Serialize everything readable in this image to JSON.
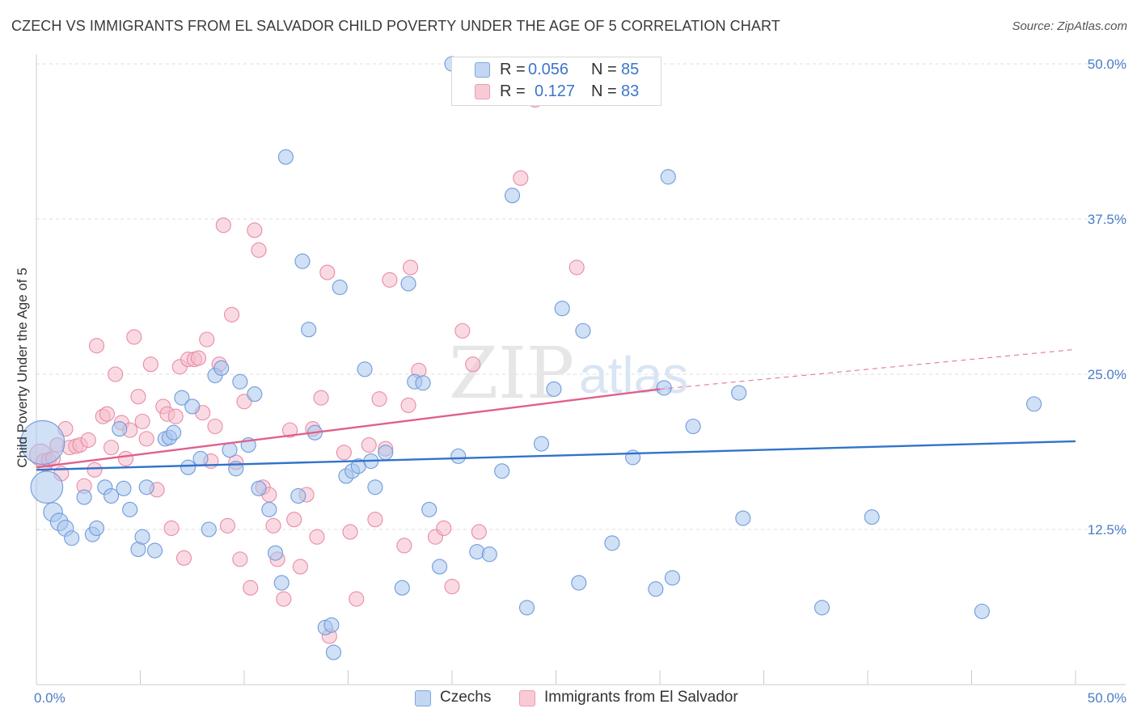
{
  "title": "CZECH VS IMMIGRANTS FROM EL SALVADOR CHILD POVERTY UNDER THE AGE OF 5 CORRELATION CHART",
  "source": "Source: ZipAtlas.com",
  "watermark": "ZIPatlas",
  "legend": {
    "rows": [
      {
        "r_label": "R =",
        "r_value": "0.056",
        "n_label": "N =",
        "n_value": "85"
      },
      {
        "r_label": "R =",
        "r_value": "0.127",
        "n_label": "N =",
        "n_value": "83"
      }
    ]
  },
  "bottom_legend": [
    "Czechs",
    "Immigrants from El Salvador"
  ],
  "colors": {
    "blue_fill": "#a9c6ec",
    "blue_stroke": "#6f9bdc",
    "blue_line": "#3173c9",
    "pink_fill": "#f5bccb",
    "pink_stroke": "#e98ba5",
    "pink_line": "#e0608a",
    "grid": "#dddddd",
    "tick_text": "#4a7cc7"
  },
  "chart_data": {
    "type": "scatter",
    "title": "CZECH VS IMMIGRANTS FROM EL SALVADOR CHILD POVERTY UNDER THE AGE OF 5 CORRELATION CHART",
    "xlabel": "",
    "ylabel": "Child Poverty Under the Age of 5",
    "xlim": [
      0,
      50
    ],
    "ylim": [
      0,
      50
    ],
    "x_tick_labels": [
      "0.0%",
      "50.0%"
    ],
    "y_tick_values": [
      12.5,
      25.0,
      37.5,
      50.0
    ],
    "y_tick_labels": [
      "12.5%",
      "25.0%",
      "37.5%",
      "50.0%"
    ],
    "grid": true,
    "legend_position": "top-center",
    "series": [
      {
        "name": "Czechs",
        "r": 0.056,
        "n": 85,
        "trend": {
          "x": [
            0,
            50
          ],
          "y": [
            17.3,
            19.6
          ]
        },
        "points": [
          [
            0.3,
            19.5,
            3
          ],
          [
            0.5,
            15.9,
            2.2
          ],
          [
            0.8,
            13.9,
            1.3
          ],
          [
            1.1,
            13.1,
            1.2
          ],
          [
            1.4,
            12.6,
            1.1
          ],
          [
            1.7,
            11.8,
            1.0
          ],
          [
            2.3,
            15.1,
            1.0
          ],
          [
            2.7,
            12.1,
            1.0
          ],
          [
            2.9,
            12.6,
            1.0
          ],
          [
            3.3,
            15.9,
            1.0
          ],
          [
            3.6,
            15.2,
            1.0
          ],
          [
            4.0,
            20.6,
            1.0
          ],
          [
            4.2,
            15.8,
            1.0
          ],
          [
            4.5,
            14.1,
            1.0
          ],
          [
            4.9,
            10.9,
            1.0
          ],
          [
            5.1,
            11.9,
            1.0
          ],
          [
            5.3,
            15.9,
            1.0
          ],
          [
            5.7,
            10.8,
            1.0
          ],
          [
            6.2,
            19.8,
            1.0
          ],
          [
            6.4,
            19.9,
            1.0
          ],
          [
            6.6,
            20.3,
            1.0
          ],
          [
            7.0,
            23.1,
            1.0
          ],
          [
            7.3,
            17.5,
            1.0
          ],
          [
            7.5,
            22.4,
            1.0
          ],
          [
            7.9,
            18.2,
            1.0
          ],
          [
            8.3,
            12.5,
            1.0
          ],
          [
            8.6,
            24.9,
            1.0
          ],
          [
            8.9,
            25.5,
            1.0
          ],
          [
            9.3,
            18.9,
            1.0
          ],
          [
            9.6,
            17.4,
            1.0
          ],
          [
            9.8,
            24.4,
            1.0
          ],
          [
            10.2,
            19.3,
            1.0
          ],
          [
            10.5,
            23.4,
            1.0
          ],
          [
            10.7,
            15.8,
            1.0
          ],
          [
            11.2,
            14.1,
            1.0
          ],
          [
            11.5,
            10.6,
            1.0
          ],
          [
            11.8,
            8.2,
            1.0
          ],
          [
            12.0,
            42.5,
            1.0
          ],
          [
            12.6,
            15.2,
            1.0
          ],
          [
            12.8,
            34.1,
            1.0
          ],
          [
            13.1,
            28.6,
            1.0
          ],
          [
            13.4,
            20.3,
            1.0
          ],
          [
            13.9,
            4.6,
            1.0
          ],
          [
            14.2,
            4.8,
            1.0
          ],
          [
            14.3,
            2.6,
            1.0
          ],
          [
            14.6,
            32.0,
            1.0
          ],
          [
            14.9,
            16.8,
            1.0
          ],
          [
            15.2,
            17.2,
            1.0
          ],
          [
            15.5,
            17.6,
            1.0
          ],
          [
            15.8,
            25.4,
            1.0
          ],
          [
            16.1,
            18.0,
            1.0
          ],
          [
            16.3,
            15.9,
            1.0
          ],
          [
            16.8,
            18.7,
            1.0
          ],
          [
            17.6,
            7.8,
            1.0
          ],
          [
            17.9,
            32.3,
            1.0
          ],
          [
            18.2,
            24.4,
            1.0
          ],
          [
            18.6,
            24.3,
            1.0
          ],
          [
            18.9,
            14.1,
            1.0
          ],
          [
            19.4,
            9.5,
            1.0
          ],
          [
            20.0,
            50.0,
            1.0
          ],
          [
            20.3,
            18.4,
            1.0
          ],
          [
            21.2,
            10.7,
            1.0
          ],
          [
            21.8,
            10.5,
            1.0
          ],
          [
            22.4,
            17.2,
            1.0
          ],
          [
            22.9,
            39.4,
            1.0
          ],
          [
            23.6,
            6.2,
            1.0
          ],
          [
            24.3,
            19.4,
            1.0
          ],
          [
            24.9,
            23.8,
            1.0
          ],
          [
            25.3,
            30.3,
            1.0
          ],
          [
            26.1,
            8.2,
            1.0
          ],
          [
            26.3,
            28.5,
            1.0
          ],
          [
            27.7,
            11.4,
            1.0
          ],
          [
            28.7,
            18.3,
            1.0
          ],
          [
            29.8,
            7.7,
            1.0
          ],
          [
            30.2,
            23.9,
            1.0
          ],
          [
            30.4,
            40.9,
            1.0
          ],
          [
            30.6,
            8.6,
            1.0
          ],
          [
            31.6,
            20.8,
            1.0
          ],
          [
            33.8,
            23.5,
            1.0
          ],
          [
            34.0,
            13.4,
            1.0
          ],
          [
            37.8,
            6.2,
            1.0
          ],
          [
            40.2,
            13.5,
            1.0
          ],
          [
            45.5,
            5.9,
            1.0
          ],
          [
            48.0,
            22.6,
            1.0
          ]
        ]
      },
      {
        "name": "Immigrants from El Salvador",
        "r": 0.127,
        "n": 83,
        "trend": {
          "x": [
            0,
            30
          ],
          "y": [
            17.5,
            23.8
          ]
        },
        "trend_extension": {
          "x": [
            30,
            50
          ],
          "y": [
            23.8,
            27.0
          ]
        },
        "points": [
          [
            0.2,
            18.5,
            1.5
          ],
          [
            0.4,
            17.9,
            1.2
          ],
          [
            0.6,
            18.1,
            1.0
          ],
          [
            0.8,
            18.2,
            1.0
          ],
          [
            1.0,
            19.3,
            1.0
          ],
          [
            1.2,
            17.0,
            1.0
          ],
          [
            1.4,
            20.6,
            1.0
          ],
          [
            1.6,
            19.1,
            1.0
          ],
          [
            1.9,
            19.2,
            1.0
          ],
          [
            2.1,
            19.3,
            1.0
          ],
          [
            2.3,
            16.0,
            1.0
          ],
          [
            2.5,
            19.7,
            1.0
          ],
          [
            2.8,
            17.3,
            1.0
          ],
          [
            2.9,
            27.3,
            1.0
          ],
          [
            3.2,
            21.6,
            1.0
          ],
          [
            3.4,
            21.8,
            1.0
          ],
          [
            3.6,
            19.1,
            1.0
          ],
          [
            3.8,
            25.0,
            1.0
          ],
          [
            4.1,
            21.1,
            1.0
          ],
          [
            4.3,
            18.2,
            1.0
          ],
          [
            4.5,
            20.5,
            1.0
          ],
          [
            4.7,
            28.0,
            1.0
          ],
          [
            4.9,
            23.2,
            1.0
          ],
          [
            5.1,
            21.2,
            1.0
          ],
          [
            5.3,
            19.8,
            1.0
          ],
          [
            5.5,
            25.8,
            1.0
          ],
          [
            5.8,
            15.7,
            1.0
          ],
          [
            6.1,
            22.4,
            1.0
          ],
          [
            6.3,
            21.8,
            1.0
          ],
          [
            6.5,
            12.6,
            1.0
          ],
          [
            6.7,
            21.6,
            1.0
          ],
          [
            6.9,
            25.6,
            1.0
          ],
          [
            7.1,
            10.2,
            1.0
          ],
          [
            7.3,
            26.2,
            1.0
          ],
          [
            7.6,
            26.2,
            1.0
          ],
          [
            7.8,
            26.3,
            1.0
          ],
          [
            8.0,
            21.9,
            1.0
          ],
          [
            8.2,
            27.8,
            1.0
          ],
          [
            8.4,
            18.0,
            1.0
          ],
          [
            8.6,
            20.8,
            1.0
          ],
          [
            8.8,
            25.8,
            1.0
          ],
          [
            9.0,
            37.0,
            1.0
          ],
          [
            9.2,
            12.8,
            1.0
          ],
          [
            9.4,
            29.8,
            1.0
          ],
          [
            9.6,
            17.9,
            1.0
          ],
          [
            9.8,
            10.1,
            1.0
          ],
          [
            10.0,
            22.8,
            1.0
          ],
          [
            10.3,
            7.8,
            1.0
          ],
          [
            10.5,
            36.6,
            1.0
          ],
          [
            10.7,
            35.0,
            1.0
          ],
          [
            10.9,
            15.9,
            1.0
          ],
          [
            11.2,
            15.3,
            1.0
          ],
          [
            11.4,
            12.8,
            1.0
          ],
          [
            11.6,
            10.1,
            1.0
          ],
          [
            11.9,
            6.9,
            1.0
          ],
          [
            12.2,
            20.5,
            1.0
          ],
          [
            12.4,
            13.3,
            1.0
          ],
          [
            12.7,
            9.5,
            1.0
          ],
          [
            13.0,
            15.3,
            1.0
          ],
          [
            13.3,
            20.6,
            1.0
          ],
          [
            13.5,
            11.9,
            1.0
          ],
          [
            13.7,
            23.1,
            1.0
          ],
          [
            14.0,
            33.2,
            1.0
          ],
          [
            14.1,
            3.9,
            1.0
          ],
          [
            14.8,
            18.7,
            1.0
          ],
          [
            15.1,
            12.3,
            1.0
          ],
          [
            15.4,
            6.9,
            1.0
          ],
          [
            16.0,
            19.3,
            1.0
          ],
          [
            16.3,
            13.3,
            1.0
          ],
          [
            16.5,
            23.0,
            1.0
          ],
          [
            16.8,
            19.0,
            1.0
          ],
          [
            17.0,
            32.6,
            1.0
          ],
          [
            17.7,
            11.2,
            1.0
          ],
          [
            17.9,
            22.5,
            1.0
          ],
          [
            18.0,
            33.6,
            1.0
          ],
          [
            18.4,
            25.3,
            1.0
          ],
          [
            19.2,
            11.9,
            1.0
          ],
          [
            19.6,
            12.6,
            1.0
          ],
          [
            20.0,
            7.9,
            1.0
          ],
          [
            20.5,
            28.5,
            1.0
          ],
          [
            21.0,
            25.8,
            1.0
          ],
          [
            21.3,
            12.3,
            1.0
          ],
          [
            23.3,
            40.8,
            1.0
          ],
          [
            24.0,
            47.1,
            1.0
          ],
          [
            26.0,
            33.6,
            1.0
          ]
        ]
      }
    ]
  }
}
